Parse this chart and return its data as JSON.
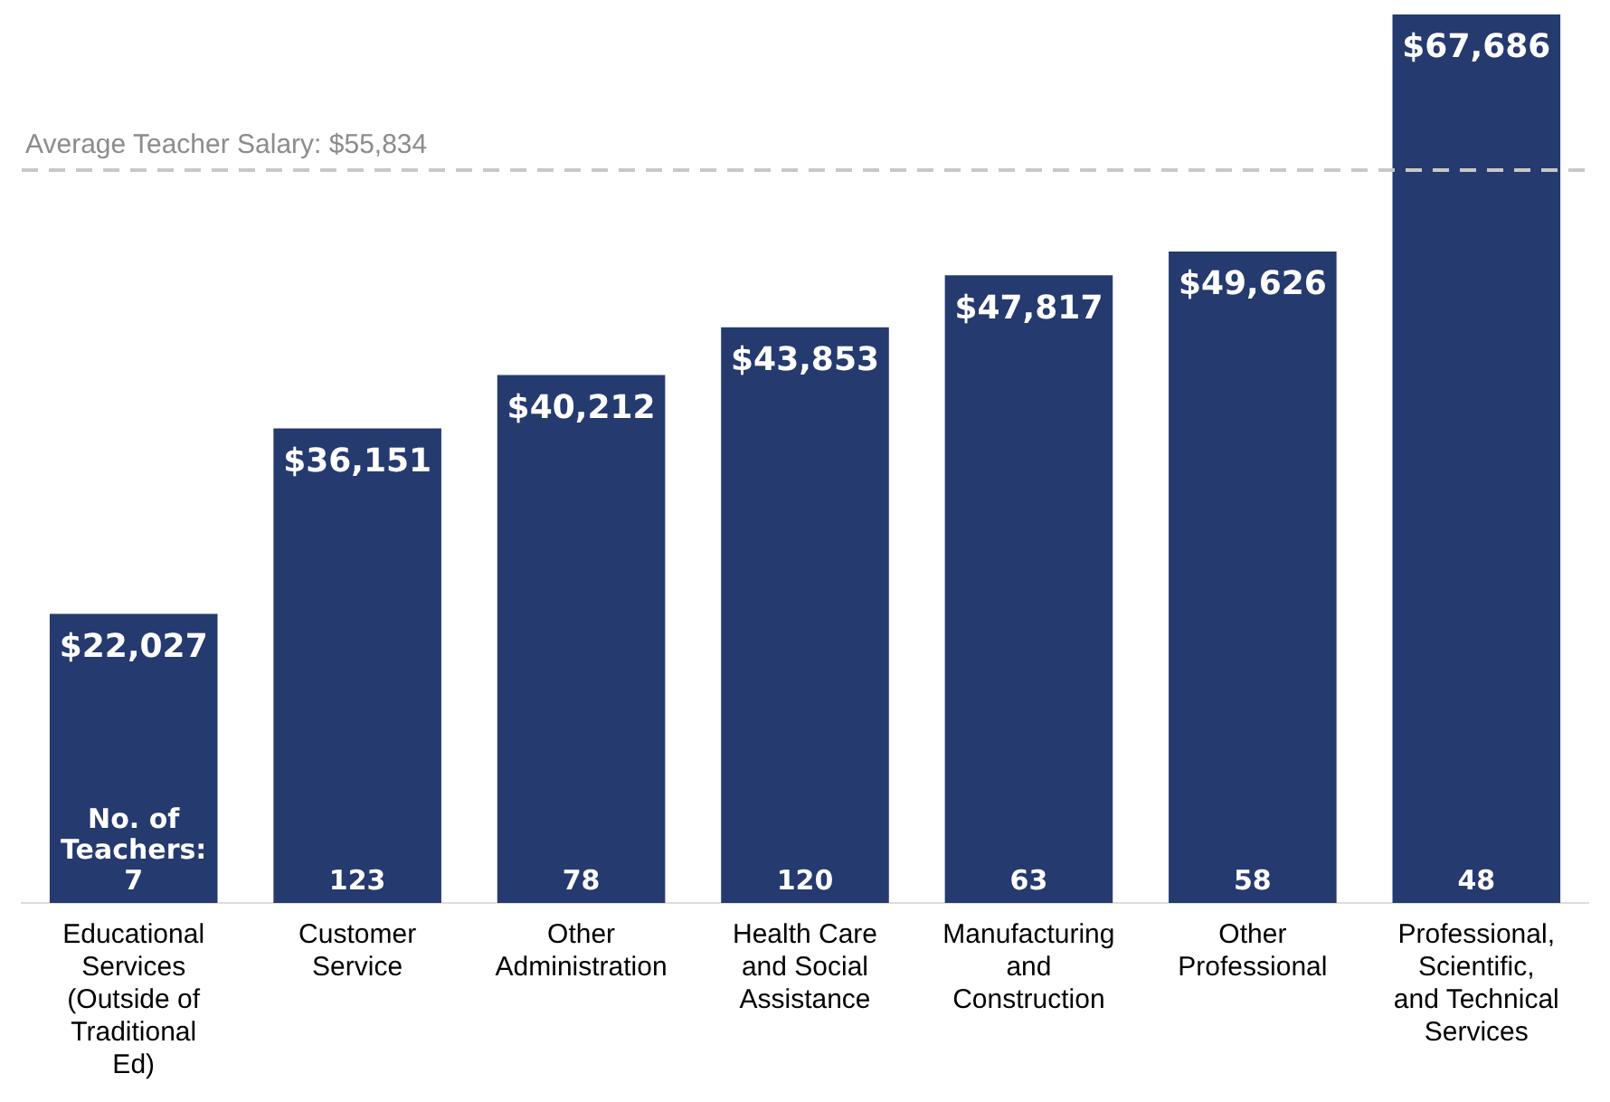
{
  "chart_data": {
    "type": "bar",
    "categories": [
      "Educational Services (Outside of Traditional Ed)",
      "Customer Service",
      "Other Administration",
      "Health Care and Social Assistance",
      "Manufacturing and Construction",
      "Other Professional",
      "Professional, Scientific, and Technical Services"
    ],
    "values": [
      22027,
      36151,
      40212,
      43853,
      47817,
      49626,
      67686
    ],
    "color": "#253a6e",
    "value_labels": [
      "$22,027",
      "$36,151",
      "$40,212",
      "$43,853",
      "$47,817",
      "$49,626",
      "$67,686"
    ],
    "ref_lines": [
      {
        "axis": "y",
        "value": 55834,
        "label": "Average Teacher Salary: $55,834",
        "color": "#c8c8c8",
        "line_style": "dashed"
      }
    ],
    "annotations": [
      "No. of Teachers: 7",
      "123",
      "78",
      "120",
      "63",
      "58",
      "48"
    ],
    "grid": false,
    "legend": false
  }
}
